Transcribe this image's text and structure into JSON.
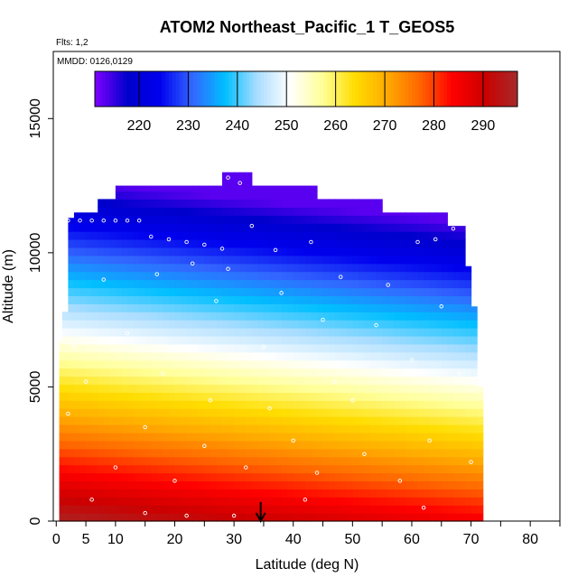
{
  "chart_data": {
    "type": "heatmap",
    "title": "ATOM2 Northeast_Pacific_1 T_GEOS5",
    "annotations": [
      "Flts: 1,2",
      "MMDD: 0126,0129"
    ],
    "xlabel": "Latitude (deg N)",
    "ylabel": "Altitude (m)",
    "xlim": [
      -0.5,
      85
    ],
    "ylim": [
      0,
      17500
    ],
    "x_ticks": [
      0,
      5,
      10,
      20,
      30,
      40,
      50,
      60,
      70,
      80
    ],
    "y_ticks": [
      0,
      5000,
      10000,
      15000
    ],
    "grid": false,
    "colorbar": {
      "placement": "top-inside",
      "range": [
        211,
        297
      ],
      "ticks": [
        220,
        230,
        240,
        250,
        260,
        270,
        280,
        290
      ],
      "colors": [
        "#8000ff",
        "#0000cc",
        "#0000ee",
        "#3366ff",
        "#00bfff",
        "#aaddff",
        "#ffffff",
        "#ffff99",
        "#ffdd00",
        "#ffaa00",
        "#ff6600",
        "#ff0000",
        "#cc0000",
        "#a52a2a"
      ]
    },
    "flight_marker": {
      "type": "arrow",
      "x": 34.5
    },
    "temperature_model": {
      "surface_north_K": 285,
      "surface_south_K": 296,
      "lapse_K_per_km": 6.5,
      "tropopause_K": 213
    },
    "data_extent": {
      "columns": [
        {
          "lat": [
            0.5,
            1
          ],
          "top_m": 6700
        },
        {
          "lat": [
            1,
            2
          ],
          "top_m": 7800
        },
        {
          "lat": [
            2,
            3
          ],
          "top_m": 11300
        },
        {
          "lat": [
            3,
            7
          ],
          "top_m": 11500
        },
        {
          "lat": [
            7,
            10
          ],
          "top_m": 12000
        },
        {
          "lat": [
            10,
            20
          ],
          "top_m": 12500
        },
        {
          "lat": [
            20,
            28
          ],
          "top_m": 12500
        },
        {
          "lat": [
            28,
            33
          ],
          "top_m": 13000
        },
        {
          "lat": [
            33,
            44
          ],
          "top_m": 12500
        },
        {
          "lat": [
            44,
            55
          ],
          "top_m": 12000
        },
        {
          "lat": [
            55,
            66
          ],
          "top_m": 11500
        },
        {
          "lat": [
            66,
            69
          ],
          "top_m": 11000
        },
        {
          "lat": [
            69,
            70
          ],
          "top_m": 9500
        },
        {
          "lat": [
            70,
            71
          ],
          "top_m": 8000
        },
        {
          "lat": [
            71,
            72
          ],
          "top_m": 5000
        }
      ]
    },
    "flight_track_samples": [
      {
        "lat": 2,
        "alt": 11200
      },
      {
        "lat": 4,
        "alt": 11200
      },
      {
        "lat": 6,
        "alt": 11200
      },
      {
        "lat": 8,
        "alt": 11200
      },
      {
        "lat": 10,
        "alt": 11200
      },
      {
        "lat": 12,
        "alt": 11200
      },
      {
        "lat": 14,
        "alt": 11200
      },
      {
        "lat": 16,
        "alt": 10600
      },
      {
        "lat": 19,
        "alt": 10500
      },
      {
        "lat": 22,
        "alt": 10400
      },
      {
        "lat": 25,
        "alt": 10300
      },
      {
        "lat": 28,
        "alt": 10150
      },
      {
        "lat": 29,
        "alt": 12800
      },
      {
        "lat": 31,
        "alt": 12600
      },
      {
        "lat": 23,
        "alt": 9600
      },
      {
        "lat": 29,
        "alt": 9400
      },
      {
        "lat": 37,
        "alt": 10100
      },
      {
        "lat": 43,
        "alt": 10400
      },
      {
        "lat": 48,
        "alt": 9100
      },
      {
        "lat": 54,
        "alt": 7300
      },
      {
        "lat": 61,
        "alt": 10400
      },
      {
        "lat": 64,
        "alt": 10500
      },
      {
        "lat": 67,
        "alt": 10900
      },
      {
        "lat": 60,
        "alt": 6000
      },
      {
        "lat": 50,
        "alt": 4500
      },
      {
        "lat": 40,
        "alt": 3000
      },
      {
        "lat": 32,
        "alt": 2000
      },
      {
        "lat": 25,
        "alt": 2800
      },
      {
        "lat": 20,
        "alt": 1500
      },
      {
        "lat": 15,
        "alt": 3500
      },
      {
        "lat": 10,
        "alt": 2000
      },
      {
        "lat": 6,
        "alt": 800
      },
      {
        "lat": 2,
        "alt": 4000
      },
      {
        "lat": 3,
        "alt": 6500
      },
      {
        "lat": 8,
        "alt": 9000
      },
      {
        "lat": 12,
        "alt": 7000
      },
      {
        "lat": 18,
        "alt": 5500
      },
      {
        "lat": 26,
        "alt": 4500
      },
      {
        "lat": 35,
        "alt": 6500
      },
      {
        "lat": 38,
        "alt": 8500
      },
      {
        "lat": 45,
        "alt": 7500
      },
      {
        "lat": 52,
        "alt": 2500
      },
      {
        "lat": 58,
        "alt": 1500
      },
      {
        "lat": 63,
        "alt": 3000
      },
      {
        "lat": 68,
        "alt": 5500
      },
      {
        "lat": 70,
        "alt": 2200
      },
      {
        "lat": 42,
        "alt": 800
      },
      {
        "lat": 30,
        "alt": 200
      },
      {
        "lat": 15,
        "alt": 300
      },
      {
        "lat": 22,
        "alt": 200
      },
      {
        "lat": 47,
        "alt": 5200
      },
      {
        "lat": 56,
        "alt": 8800
      },
      {
        "lat": 65,
        "alt": 8000
      },
      {
        "lat": 33,
        "alt": 11000
      },
      {
        "lat": 27,
        "alt": 8200
      },
      {
        "lat": 17,
        "alt": 9200
      },
      {
        "lat": 5,
        "alt": 5200
      },
      {
        "lat": 36,
        "alt": 4200
      },
      {
        "lat": 44,
        "alt": 1800
      },
      {
        "lat": 62,
        "alt": 500
      }
    ]
  }
}
